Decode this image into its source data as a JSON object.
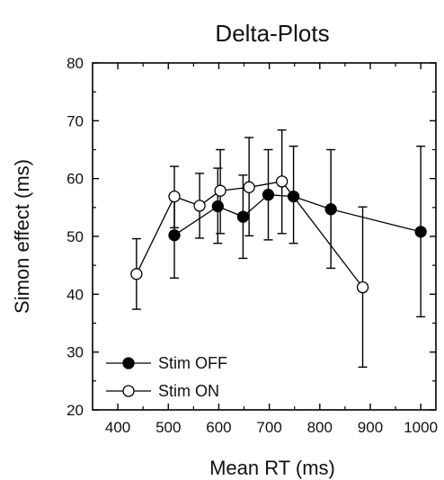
{
  "chart_data": {
    "type": "line",
    "title": "Delta-Plots",
    "xlabel": "Mean RT (ms)",
    "ylabel": "Simon effect (ms)",
    "xlim": [
      350,
      1030
    ],
    "ylim": [
      20,
      80
    ],
    "xticks": [
      400,
      500,
      600,
      700,
      800,
      900,
      1000
    ],
    "yticks": [
      20,
      30,
      40,
      50,
      60,
      70,
      80
    ],
    "grid": false,
    "legend_position": "bottom-left",
    "series": [
      {
        "name": "Stim OFF",
        "marker": "filled-circle",
        "color": "#000000",
        "points": [
          {
            "x": 512,
            "y": 50.2,
            "err_low": 42.8,
            "err_high": 56.3
          },
          {
            "x": 598,
            "y": 55.2,
            "err_low": 48.8,
            "err_high": 61.8
          },
          {
            "x": 648,
            "y": 53.4,
            "err_low": 46.2,
            "err_high": 60.6
          },
          {
            "x": 698,
            "y": 57.2,
            "err_low": 49.4,
            "err_high": 65.0
          },
          {
            "x": 748,
            "y": 56.9,
            "err_low": 48.8,
            "err_high": 65.6
          },
          {
            "x": 822,
            "y": 54.7,
            "err_low": 44.5,
            "err_high": 65.0
          },
          {
            "x": 1000,
            "y": 50.8,
            "err_low": 36.1,
            "err_high": 65.6
          }
        ]
      },
      {
        "name": "Stim ON",
        "marker": "open-circle",
        "color": "#000000",
        "points": [
          {
            "x": 437,
            "y": 43.5,
            "err_low": 37.4,
            "err_high": 49.6
          },
          {
            "x": 512,
            "y": 56.9,
            "err_low": 51.5,
            "err_high": 62.1
          },
          {
            "x": 562,
            "y": 55.3,
            "err_low": 49.7,
            "err_high": 60.9
          },
          {
            "x": 603,
            "y": 57.9,
            "err_low": 50.5,
            "err_high": 65.0
          },
          {
            "x": 660,
            "y": 58.5,
            "err_low": 50.1,
            "err_high": 67.1
          },
          {
            "x": 725,
            "y": 59.5,
            "err_low": 50.5,
            "err_high": 68.4
          },
          {
            "x": 885,
            "y": 41.2,
            "err_low": 27.4,
            "err_high": 55.1
          }
        ]
      }
    ]
  }
}
